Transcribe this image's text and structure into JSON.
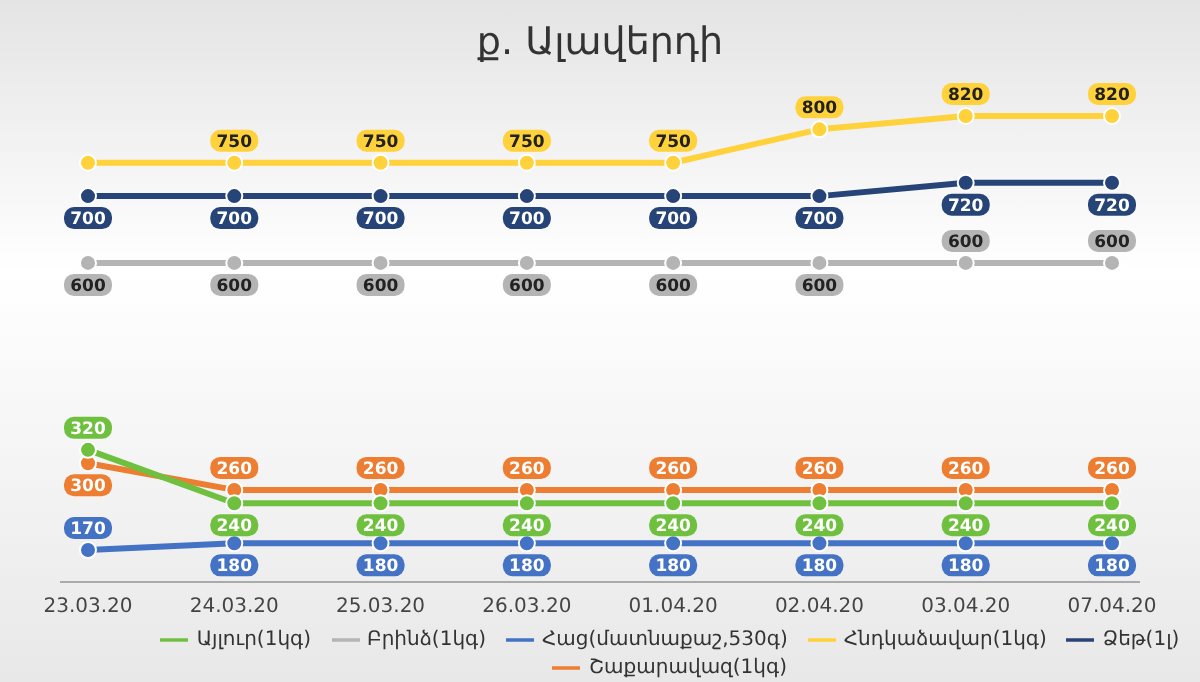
{
  "chart_data": {
    "type": "line",
    "title": "ք. Ալավերդի",
    "categories": [
      "23.03.20",
      "24.03.20",
      "25.03.20",
      "26.03.20",
      "01.04.20",
      "02.04.20",
      "03.04.20",
      "07.04.20"
    ],
    "marker": "circle",
    "legend": "bottom",
    "series": [
      {
        "name": "Հաց(մատնաքաշ,530գ)",
        "color": "#4472c4",
        "values": [
          170,
          180,
          180,
          180,
          180,
          180,
          180,
          180
        ],
        "value_labels": [
          "170",
          "180",
          "180",
          "180",
          "180",
          "180",
          "180",
          "180"
        ]
      },
      {
        "name": "Բրինձ(1կգ)",
        "color": "#b4b4b4",
        "values": [
          600,
          600,
          600,
          600,
          600,
          600,
          600,
          600
        ],
        "value_labels": [
          "600",
          "600",
          "600",
          "600",
          "600",
          "600",
          "600",
          "600"
        ]
      },
      {
        "name": "Ձեթ(1լ)",
        "color": "#264478",
        "values": [
          700,
          700,
          700,
          700,
          700,
          700,
          720,
          720
        ],
        "value_labels": [
          "700",
          "700",
          "700",
          "700",
          "700",
          "700",
          "720",
          "720"
        ]
      },
      {
        "name": "Շաքարավազ(1կգ)",
        "color": "#ed7d31",
        "values": [
          300,
          260,
          260,
          260,
          260,
          260,
          260,
          260
        ],
        "value_labels": [
          "300",
          "260",
          "260",
          "260",
          "260",
          "260",
          "260",
          "260"
        ]
      },
      {
        "name": "Այլուր(1կգ)",
        "color": "#70c040",
        "values": [
          320,
          240,
          240,
          240,
          240,
          240,
          240,
          240
        ],
        "value_labels": [
          "320",
          "240",
          "240",
          "240",
          "240",
          "240",
          "240",
          "240"
        ]
      },
      {
        "name": "Հնդկաձավար(1կգ)",
        "color": "#ffd13a",
        "values": [
          750,
          750,
          750,
          750,
          750,
          800,
          820,
          820
        ],
        "value_labels": [
          null,
          "750",
          "750",
          "750",
          "750",
          "800",
          "820",
          "820"
        ]
      }
    ]
  }
}
